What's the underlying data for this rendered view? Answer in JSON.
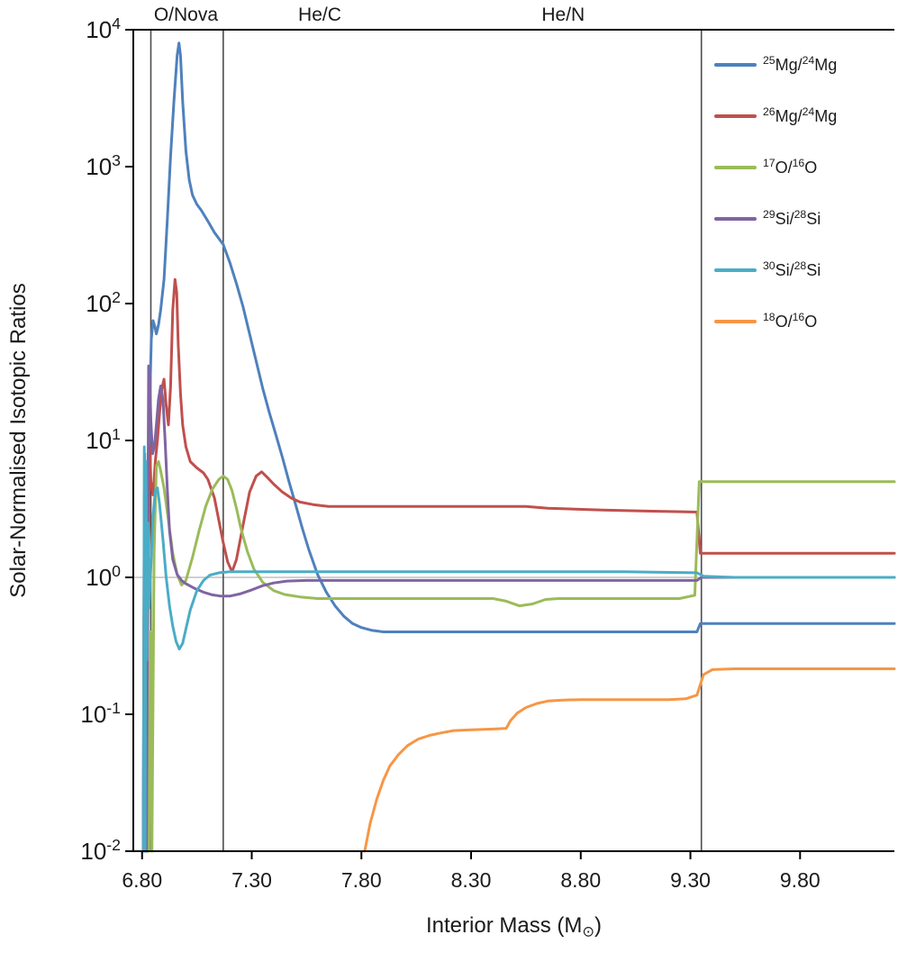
{
  "chart_data": {
    "type": "line",
    "title": "",
    "xlabel": "Interior Mass (M~⊙~)",
    "ylabel": "Solar-Normalised Isotopic Ratios",
    "xlim": [
      6.76,
      10.23
    ],
    "ylim": [
      0.01,
      10000
    ],
    "yscale": "log",
    "grid": false,
    "legend_position": "top-right-inside",
    "reference_line_y": 1,
    "boundaries_x": [
      6.84,
      7.17,
      9.35
    ],
    "region_labels": [
      {
        "text": "O/Nova",
        "x": 7.0
      },
      {
        "text": "He/C",
        "x": 7.61
      },
      {
        "text": "He/N",
        "x": 8.72
      }
    ],
    "x_ticks": [
      {
        "v": 6.8,
        "l": "6.80"
      },
      {
        "v": 7.3,
        "l": "7.30"
      },
      {
        "v": 7.8,
        "l": "7.80"
      },
      {
        "v": 8.3,
        "l": "8.30"
      },
      {
        "v": 8.8,
        "l": "8.80"
      },
      {
        "v": 9.3,
        "l": "9.30"
      },
      {
        "v": 9.8,
        "l": "9.80"
      }
    ],
    "y_ticks": [
      {
        "v": 10000,
        "l": "10^4^"
      },
      {
        "v": 1000,
        "l": "10^3^"
      },
      {
        "v": 100,
        "l": "10^2^"
      },
      {
        "v": 10,
        "l": "10^1^"
      },
      {
        "v": 1,
        "l": "10^0^"
      },
      {
        "v": 0.1,
        "l": "10^-1^"
      },
      {
        "v": 0.01,
        "l": "10^-2^"
      }
    ],
    "colors": {
      "blue": "#4F81BD",
      "red": "#C0504D",
      "green": "#9BBB59",
      "purple": "#8064A2",
      "teal": "#4BACC6",
      "orange": "#F79646",
      "boundary": "#4d4d4d",
      "reference": "#c0c0c0",
      "axis": "#000000"
    },
    "series": [
      {
        "id": "25Mg-24Mg",
        "name": "^25^Mg/^24^Mg",
        "color": "#4F81BD",
        "points": [
          [
            6.805,
            0.01
          ],
          [
            6.81,
            2
          ],
          [
            6.815,
            0.5
          ],
          [
            6.82,
            0.03
          ],
          [
            6.828,
            6
          ],
          [
            6.835,
            20
          ],
          [
            6.842,
            55
          ],
          [
            6.85,
            75
          ],
          [
            6.858,
            68
          ],
          [
            6.865,
            60
          ],
          [
            6.875,
            70
          ],
          [
            6.885,
            90
          ],
          [
            6.9,
            150
          ],
          [
            6.915,
            400
          ],
          [
            6.93,
            1200
          ],
          [
            6.945,
            3000
          ],
          [
            6.96,
            6500
          ],
          [
            6.968,
            8000
          ],
          [
            6.975,
            6500
          ],
          [
            6.985,
            3000
          ],
          [
            7.0,
            1300
          ],
          [
            7.015,
            800
          ],
          [
            7.03,
            620
          ],
          [
            7.05,
            530
          ],
          [
            7.07,
            480
          ],
          [
            7.1,
            400
          ],
          [
            7.13,
            330
          ],
          [
            7.17,
            270
          ],
          [
            7.2,
            200
          ],
          [
            7.23,
            140
          ],
          [
            7.26,
            95
          ],
          [
            7.29,
            60
          ],
          [
            7.32,
            38
          ],
          [
            7.35,
            24
          ],
          [
            7.38,
            16
          ],
          [
            7.41,
            11
          ],
          [
            7.44,
            7.5
          ],
          [
            7.47,
            5
          ],
          [
            7.5,
            3.4
          ],
          [
            7.53,
            2.3
          ],
          [
            7.56,
            1.6
          ],
          [
            7.6,
            1.05
          ],
          [
            7.64,
            0.78
          ],
          [
            7.68,
            0.62
          ],
          [
            7.72,
            0.52
          ],
          [
            7.76,
            0.46
          ],
          [
            7.8,
            0.43
          ],
          [
            7.85,
            0.41
          ],
          [
            7.9,
            0.4
          ],
          [
            8.2,
            0.4
          ],
          [
            8.6,
            0.4
          ],
          [
            9.0,
            0.4
          ],
          [
            9.2,
            0.4
          ],
          [
            9.33,
            0.4
          ],
          [
            9.345,
            0.46
          ],
          [
            9.5,
            0.46
          ],
          [
            10.23,
            0.46
          ]
        ]
      },
      {
        "id": "26Mg-24Mg",
        "name": "^26^Mg/^24^Mg",
        "color": "#C0504D",
        "points": [
          [
            6.805,
            0.01
          ],
          [
            6.81,
            4
          ],
          [
            6.815,
            0.02
          ],
          [
            6.82,
            0.01
          ],
          [
            6.828,
            1.5
          ],
          [
            6.835,
            9
          ],
          [
            6.84,
            5
          ],
          [
            6.85,
            4
          ],
          [
            6.86,
            7
          ],
          [
            6.87,
            10
          ],
          [
            6.88,
            16
          ],
          [
            6.89,
            24
          ],
          [
            6.9,
            28
          ],
          [
            6.91,
            18
          ],
          [
            6.92,
            13
          ],
          [
            6.93,
            25
          ],
          [
            6.94,
            90
          ],
          [
            6.95,
            150
          ],
          [
            6.958,
            120
          ],
          [
            6.965,
            50
          ],
          [
            6.975,
            22
          ],
          [
            6.985,
            13
          ],
          [
            7.0,
            9
          ],
          [
            7.02,
            7
          ],
          [
            7.05,
            6.3
          ],
          [
            7.08,
            5.8
          ],
          [
            7.1,
            5.2
          ],
          [
            7.13,
            3.8
          ],
          [
            7.15,
            2.6
          ],
          [
            7.17,
            1.8
          ],
          [
            7.19,
            1.3
          ],
          [
            7.21,
            1.1
          ],
          [
            7.23,
            1.35
          ],
          [
            7.26,
            2.4
          ],
          [
            7.29,
            4.2
          ],
          [
            7.32,
            5.5
          ],
          [
            7.345,
            5.9
          ],
          [
            7.37,
            5.4
          ],
          [
            7.4,
            4.8
          ],
          [
            7.44,
            4.2
          ],
          [
            7.48,
            3.8
          ],
          [
            7.52,
            3.55
          ],
          [
            7.58,
            3.4
          ],
          [
            7.65,
            3.3
          ],
          [
            7.8,
            3.3
          ],
          [
            8.2,
            3.3
          ],
          [
            8.55,
            3.3
          ],
          [
            8.65,
            3.2
          ],
          [
            8.9,
            3.1
          ],
          [
            9.1,
            3.05
          ],
          [
            9.33,
            3.0
          ],
          [
            9.345,
            1.5
          ],
          [
            9.5,
            1.5
          ],
          [
            10.23,
            1.5
          ]
        ]
      },
      {
        "id": "17O-16O",
        "name": "^17^O/^16^O",
        "color": "#9BBB59",
        "points": [
          [
            6.818,
            0.01
          ],
          [
            6.822,
            5
          ],
          [
            6.826,
            0.01
          ],
          [
            6.83,
            0.01
          ],
          [
            6.84,
            0.4
          ],
          [
            6.845,
            0.01
          ],
          [
            6.855,
            1.5
          ],
          [
            6.865,
            6.5
          ],
          [
            6.875,
            7
          ],
          [
            6.885,
            6
          ],
          [
            6.9,
            4.5
          ],
          [
            6.92,
            2.6
          ],
          [
            6.94,
            1.5
          ],
          [
            6.96,
            1.05
          ],
          [
            6.98,
            0.88
          ],
          [
            7.0,
            0.95
          ],
          [
            7.03,
            1.4
          ],
          [
            7.06,
            2.2
          ],
          [
            7.09,
            3.3
          ],
          [
            7.12,
            4.4
          ],
          [
            7.15,
            5.2
          ],
          [
            7.17,
            5.5
          ],
          [
            7.19,
            5.2
          ],
          [
            7.21,
            4.3
          ],
          [
            7.23,
            3.2
          ],
          [
            7.25,
            2.3
          ],
          [
            7.28,
            1.55
          ],
          [
            7.31,
            1.15
          ],
          [
            7.35,
            0.92
          ],
          [
            7.4,
            0.8
          ],
          [
            7.45,
            0.75
          ],
          [
            7.52,
            0.72
          ],
          [
            7.6,
            0.7
          ],
          [
            7.8,
            0.7
          ],
          [
            8.1,
            0.7
          ],
          [
            8.4,
            0.7
          ],
          [
            8.46,
            0.67
          ],
          [
            8.52,
            0.62
          ],
          [
            8.58,
            0.64
          ],
          [
            8.64,
            0.69
          ],
          [
            8.7,
            0.7
          ],
          [
            9.0,
            0.7
          ],
          [
            9.25,
            0.7
          ],
          [
            9.32,
            0.74
          ],
          [
            9.34,
            5.0
          ],
          [
            9.5,
            5.0
          ],
          [
            10.23,
            5.0
          ]
        ]
      },
      {
        "id": "29Si-28Si",
        "name": "^29^Si/^28^Si",
        "color": "#8064A2",
        "points": [
          [
            6.808,
            0.01
          ],
          [
            6.812,
            8
          ],
          [
            6.816,
            0.1
          ],
          [
            6.82,
            0.01
          ],
          [
            6.826,
            2
          ],
          [
            6.83,
            35
          ],
          [
            6.835,
            28
          ],
          [
            6.84,
            14
          ],
          [
            6.848,
            8
          ],
          [
            6.856,
            9
          ],
          [
            6.865,
            13
          ],
          [
            6.875,
            20
          ],
          [
            6.885,
            25
          ],
          [
            6.895,
            20
          ],
          [
            6.905,
            10
          ],
          [
            6.915,
            4.5
          ],
          [
            6.925,
            2.2
          ],
          [
            6.94,
            1.35
          ],
          [
            6.96,
            1.05
          ],
          [
            6.98,
            0.95
          ],
          [
            7.0,
            0.9
          ],
          [
            7.04,
            0.83
          ],
          [
            7.08,
            0.78
          ],
          [
            7.12,
            0.745
          ],
          [
            7.16,
            0.73
          ],
          [
            7.2,
            0.73
          ],
          [
            7.25,
            0.76
          ],
          [
            7.3,
            0.81
          ],
          [
            7.35,
            0.87
          ],
          [
            7.4,
            0.91
          ],
          [
            7.46,
            0.94
          ],
          [
            7.55,
            0.95
          ],
          [
            7.8,
            0.95
          ],
          [
            8.3,
            0.95
          ],
          [
            9.0,
            0.95
          ],
          [
            9.33,
            0.95
          ],
          [
            9.35,
            1.0
          ],
          [
            9.6,
            1.0
          ],
          [
            10.23,
            1.0
          ]
        ]
      },
      {
        "id": "30Si-28Si",
        "name": "^30^Si/^28^Si",
        "color": "#4BACC6",
        "points": [
          [
            6.806,
            0.01
          ],
          [
            6.81,
            9
          ],
          [
            6.814,
            0.01
          ],
          [
            6.818,
            7
          ],
          [
            6.822,
            0.25
          ],
          [
            6.827,
            2.5
          ],
          [
            6.832,
            0.6
          ],
          [
            6.84,
            1.2
          ],
          [
            6.85,
            2.8
          ],
          [
            6.86,
            4.3
          ],
          [
            6.87,
            4.5
          ],
          [
            6.88,
            3.4
          ],
          [
            6.895,
            1.9
          ],
          [
            6.91,
            1.0
          ],
          [
            6.925,
            0.62
          ],
          [
            6.94,
            0.44
          ],
          [
            6.955,
            0.34
          ],
          [
            6.97,
            0.3
          ],
          [
            6.985,
            0.33
          ],
          [
            7.0,
            0.42
          ],
          [
            7.02,
            0.58
          ],
          [
            7.05,
            0.8
          ],
          [
            7.08,
            0.95
          ],
          [
            7.11,
            1.04
          ],
          [
            7.15,
            1.08
          ],
          [
            7.2,
            1.1
          ],
          [
            7.4,
            1.1
          ],
          [
            7.8,
            1.1
          ],
          [
            8.3,
            1.1
          ],
          [
            9.0,
            1.1
          ],
          [
            9.33,
            1.08
          ],
          [
            9.36,
            1.02
          ],
          [
            9.5,
            1.0
          ],
          [
            10.23,
            1.0
          ]
        ]
      },
      {
        "id": "18O-16O",
        "name": "^18^O/^16^O",
        "color": "#F79646",
        "points": [
          [
            7.815,
            0.01
          ],
          [
            7.84,
            0.016
          ],
          [
            7.87,
            0.024
          ],
          [
            7.9,
            0.033
          ],
          [
            7.93,
            0.042
          ],
          [
            7.97,
            0.051
          ],
          [
            8.01,
            0.059
          ],
          [
            8.06,
            0.066
          ],
          [
            8.11,
            0.07
          ],
          [
            8.16,
            0.073
          ],
          [
            8.22,
            0.076
          ],
          [
            8.3,
            0.077
          ],
          [
            8.4,
            0.078
          ],
          [
            8.46,
            0.079
          ],
          [
            8.48,
            0.09
          ],
          [
            8.51,
            0.102
          ],
          [
            8.55,
            0.112
          ],
          [
            8.6,
            0.12
          ],
          [
            8.65,
            0.125
          ],
          [
            8.72,
            0.127
          ],
          [
            8.8,
            0.128
          ],
          [
            9.0,
            0.128
          ],
          [
            9.2,
            0.128
          ],
          [
            9.28,
            0.13
          ],
          [
            9.33,
            0.138
          ],
          [
            9.36,
            0.195
          ],
          [
            9.4,
            0.212
          ],
          [
            9.5,
            0.215
          ],
          [
            9.8,
            0.215
          ],
          [
            10.23,
            0.215
          ]
        ]
      }
    ]
  }
}
